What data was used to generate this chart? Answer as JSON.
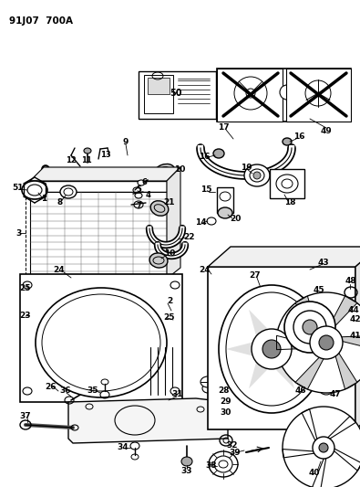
{
  "title_code": "91J07  700A",
  "bg": "#ffffff",
  "lc": "#1a1a1a",
  "fig_w": 3.95,
  "fig_h": 5.33,
  "dpi": 100
}
